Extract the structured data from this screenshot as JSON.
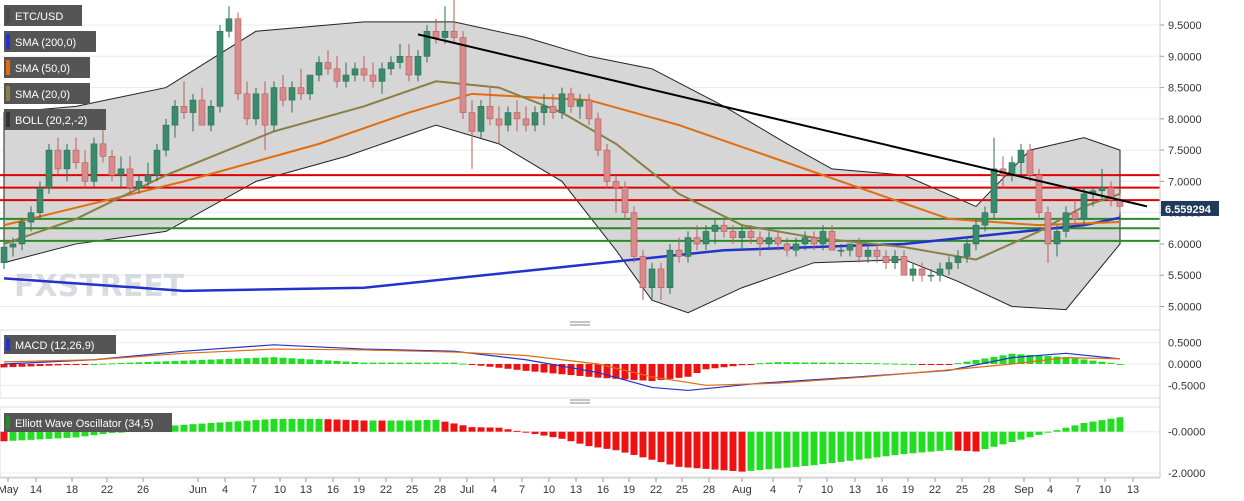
{
  "chart_data": {
    "type": "candlestick",
    "symbol": "ETC/USD",
    "legend": [
      {
        "label": "ETC/USD",
        "color": "#4a4a4a"
      },
      {
        "label": "SMA (200,0)",
        "color": "#2233cc"
      },
      {
        "label": "SMA (50,0)",
        "color": "#e06d10"
      },
      {
        "label": "SMA (20,0)",
        "color": "#8a7f44"
      },
      {
        "label": "BOLL (20,2,-2)",
        "color": "#333333"
      }
    ],
    "current_price": "6.559294",
    "y_ticks": [
      "9.5000",
      "9.0000",
      "8.5000",
      "8.0000",
      "7.5000",
      "7.0000",
      "6.5000",
      "6.0000",
      "5.5000",
      "5.0000"
    ],
    "y_range": [
      4.8,
      9.9
    ],
    "x_ticks": [
      "May",
      "14",
      "18",
      "22",
      "26",
      "Jun",
      "4",
      "7",
      "10",
      "13",
      "16",
      "19",
      "22",
      "25",
      "28",
      "Jul",
      "4",
      "7",
      "10",
      "13",
      "16",
      "19",
      "22",
      "25",
      "28",
      "Aug",
      "4",
      "7",
      "10",
      "13",
      "16",
      "19",
      "22",
      "25",
      "28",
      "Sep",
      "4",
      "7",
      "10",
      "13"
    ],
    "candles": [
      [
        5.7,
        6.0,
        5.6,
        5.95
      ],
      [
        5.95,
        6.1,
        5.8,
        6.0
      ],
      [
        6.0,
        6.4,
        5.9,
        6.35
      ],
      [
        6.35,
        6.6,
        6.2,
        6.5
      ],
      [
        6.5,
        7.0,
        6.4,
        6.9
      ],
      [
        6.9,
        7.6,
        6.8,
        7.5
      ],
      [
        7.5,
        7.7,
        7.1,
        7.2
      ],
      [
        7.2,
        7.6,
        7.0,
        7.5
      ],
      [
        7.5,
        7.7,
        7.2,
        7.3
      ],
      [
        7.3,
        7.5,
        6.9,
        7.0
      ],
      [
        7.0,
        7.7,
        6.9,
        7.6
      ],
      [
        7.6,
        7.9,
        7.3,
        7.4
      ],
      [
        7.4,
        7.5,
        7.0,
        7.1
      ],
      [
        7.1,
        7.4,
        6.9,
        7.2
      ],
      [
        7.2,
        7.4,
        6.8,
        6.9
      ],
      [
        6.9,
        7.1,
        6.8,
        7.0
      ],
      [
        7.0,
        7.3,
        6.9,
        7.1
      ],
      [
        7.1,
        7.6,
        7.0,
        7.5
      ],
      [
        7.5,
        8.0,
        7.4,
        7.9
      ],
      [
        7.9,
        8.3,
        7.7,
        8.2
      ],
      [
        8.2,
        8.6,
        8.0,
        8.1
      ],
      [
        8.1,
        8.4,
        7.8,
        8.3
      ],
      [
        8.3,
        8.5,
        7.9,
        7.9
      ],
      [
        7.9,
        8.3,
        7.8,
        8.2
      ],
      [
        8.2,
        9.5,
        8.1,
        9.4
      ],
      [
        9.4,
        9.8,
        9.3,
        9.6
      ],
      [
        9.6,
        9.7,
        8.3,
        8.4
      ],
      [
        8.4,
        8.6,
        7.9,
        8.0
      ],
      [
        8.0,
        8.5,
        7.9,
        8.4
      ],
      [
        8.4,
        8.6,
        7.5,
        7.9
      ],
      [
        7.9,
        8.6,
        7.8,
        8.5
      ],
      [
        8.5,
        8.7,
        8.2,
        8.3
      ],
      [
        8.3,
        8.6,
        8.1,
        8.5
      ],
      [
        8.5,
        8.8,
        8.3,
        8.4
      ],
      [
        8.4,
        8.7,
        8.3,
        8.7
      ],
      [
        8.7,
        9.0,
        8.6,
        8.9
      ],
      [
        8.9,
        9.1,
        8.7,
        8.8
      ],
      [
        8.8,
        9.0,
        8.5,
        8.6
      ],
      [
        8.6,
        8.9,
        8.5,
        8.7
      ],
      [
        8.7,
        8.9,
        8.6,
        8.8
      ],
      [
        8.8,
        9.0,
        8.6,
        8.7
      ],
      [
        8.7,
        8.9,
        8.5,
        8.6
      ],
      [
        8.6,
        8.9,
        8.4,
        8.8
      ],
      [
        8.8,
        9.0,
        8.7,
        8.9
      ],
      [
        8.9,
        9.2,
        8.8,
        9.0
      ],
      [
        9.0,
        9.2,
        8.6,
        8.7
      ],
      [
        8.7,
        9.1,
        8.6,
        9.0
      ],
      [
        9.0,
        9.5,
        8.9,
        9.4
      ],
      [
        9.4,
        9.6,
        9.2,
        9.3
      ],
      [
        9.3,
        9.8,
        9.2,
        9.4
      ],
      [
        9.4,
        9.9,
        9.2,
        9.3
      ],
      [
        9.3,
        9.4,
        8.0,
        8.1
      ],
      [
        8.1,
        8.3,
        7.2,
        7.8
      ],
      [
        7.8,
        8.3,
        7.7,
        8.2
      ],
      [
        8.2,
        8.5,
        7.9,
        8.0
      ],
      [
        8.0,
        8.2,
        7.6,
        7.9
      ],
      [
        7.9,
        8.2,
        7.8,
        8.1
      ],
      [
        8.1,
        8.3,
        7.8,
        8.0
      ],
      [
        8.0,
        8.2,
        7.8,
        7.9
      ],
      [
        7.9,
        8.2,
        7.8,
        8.1
      ],
      [
        8.1,
        8.4,
        7.9,
        8.2
      ],
      [
        8.2,
        8.4,
        8.0,
        8.1
      ],
      [
        8.1,
        8.5,
        8.0,
        8.4
      ],
      [
        8.4,
        8.5,
        8.1,
        8.2
      ],
      [
        8.2,
        8.4,
        8.0,
        8.3
      ],
      [
        8.3,
        8.4,
        7.9,
        8.0
      ],
      [
        8.0,
        8.1,
        7.4,
        7.5
      ],
      [
        7.5,
        7.6,
        6.9,
        7.0
      ],
      [
        7.0,
        7.1,
        6.5,
        6.9
      ],
      [
        6.9,
        7.0,
        6.4,
        6.5
      ],
      [
        6.5,
        6.6,
        5.7,
        5.8
      ],
      [
        5.8,
        5.9,
        5.1,
        5.3
      ],
      [
        5.3,
        5.7,
        5.1,
        5.6
      ],
      [
        5.6,
        5.7,
        5.1,
        5.3
      ],
      [
        5.3,
        6.0,
        5.2,
        5.9
      ],
      [
        5.9,
        6.1,
        5.7,
        5.8
      ],
      [
        5.8,
        6.2,
        5.7,
        6.1
      ],
      [
        6.1,
        6.3,
        5.9,
        6.0
      ],
      [
        6.0,
        6.3,
        5.9,
        6.2
      ],
      [
        6.2,
        6.4,
        6.0,
        6.3
      ],
      [
        6.3,
        6.4,
        6.1,
        6.2
      ],
      [
        6.2,
        6.3,
        6.0,
        6.1
      ],
      [
        6.1,
        6.3,
        5.9,
        6.2
      ],
      [
        6.2,
        6.3,
        6.0,
        6.1
      ],
      [
        6.1,
        6.2,
        5.8,
        6.0
      ],
      [
        6.0,
        6.2,
        5.9,
        6.1
      ],
      [
        6.1,
        6.2,
        5.9,
        6.0
      ],
      [
        6.0,
        6.1,
        5.8,
        5.9
      ],
      [
        5.9,
        6.1,
        5.8,
        6.0
      ],
      [
        6.0,
        6.2,
        5.9,
        6.1
      ],
      [
        6.1,
        6.2,
        5.9,
        6.0
      ],
      [
        6.0,
        6.3,
        5.9,
        6.2
      ],
      [
        6.2,
        6.3,
        5.9,
        5.9
      ],
      [
        5.9,
        6.0,
        5.8,
        5.9
      ],
      [
        5.9,
        6.0,
        5.8,
        6.0
      ],
      [
        6.0,
        6.1,
        5.7,
        5.8
      ],
      [
        5.8,
        6.0,
        5.7,
        5.9
      ],
      [
        5.9,
        6.0,
        5.7,
        5.8
      ],
      [
        5.8,
        5.9,
        5.6,
        5.7
      ],
      [
        5.7,
        5.9,
        5.6,
        5.8
      ],
      [
        5.8,
        5.9,
        5.5,
        5.5
      ],
      [
        5.5,
        5.7,
        5.4,
        5.6
      ],
      [
        5.6,
        5.7,
        5.4,
        5.5
      ],
      [
        5.5,
        5.6,
        5.4,
        5.5
      ],
      [
        5.5,
        5.7,
        5.4,
        5.6
      ],
      [
        5.6,
        5.8,
        5.5,
        5.7
      ],
      [
        5.7,
        5.9,
        5.6,
        5.8
      ],
      [
        5.8,
        6.1,
        5.7,
        6.0
      ],
      [
        6.0,
        6.4,
        5.9,
        6.3
      ],
      [
        6.3,
        6.6,
        6.2,
        6.5
      ],
      [
        6.5,
        7.7,
        6.4,
        7.2
      ],
      [
        7.2,
        7.4,
        6.9,
        7.1
      ],
      [
        7.1,
        7.4,
        7.0,
        7.3
      ],
      [
        7.3,
        7.6,
        7.1,
        7.5
      ],
      [
        7.5,
        7.6,
        7.0,
        7.1
      ],
      [
        7.1,
        7.2,
        6.4,
        6.5
      ],
      [
        6.5,
        6.6,
        5.7,
        6.0
      ],
      [
        6.0,
        6.3,
        5.8,
        6.2
      ],
      [
        6.2,
        6.6,
        6.1,
        6.5
      ],
      [
        6.5,
        6.7,
        6.3,
        6.4
      ],
      [
        6.4,
        6.9,
        6.3,
        6.8
      ],
      [
        6.8,
        6.9,
        6.6,
        6.85
      ],
      [
        6.85,
        7.2,
        6.7,
        6.9
      ],
      [
        6.9,
        7.0,
        6.6,
        6.7
      ],
      [
        6.7,
        6.8,
        6.5,
        6.6
      ]
    ],
    "sma200": [
      [
        0,
        5.45
      ],
      [
        20,
        5.25
      ],
      [
        40,
        5.3
      ],
      [
        60,
        5.6
      ],
      [
        80,
        5.9
      ],
      [
        100,
        6.0
      ],
      [
        120,
        6.3
      ],
      [
        124,
        6.42
      ]
    ],
    "sma50": [
      [
        0,
        6.3
      ],
      [
        10,
        6.65
      ],
      [
        20,
        7.0
      ],
      [
        35,
        7.6
      ],
      [
        45,
        8.1
      ],
      [
        52,
        8.4
      ],
      [
        58,
        8.35
      ],
      [
        65,
        8.3
      ],
      [
        75,
        7.9
      ],
      [
        85,
        7.4
      ],
      [
        95,
        6.9
      ],
      [
        105,
        6.4
      ],
      [
        115,
        6.3
      ],
      [
        124,
        6.35
      ]
    ],
    "sma20": [
      [
        0,
        6.0
      ],
      [
        8,
        6.4
      ],
      [
        18,
        7.1
      ],
      [
        30,
        7.8
      ],
      [
        40,
        8.2
      ],
      [
        48,
        8.6
      ],
      [
        55,
        8.5
      ],
      [
        62,
        8.1
      ],
      [
        68,
        7.6
      ],
      [
        75,
        6.8
      ],
      [
        82,
        6.3
      ],
      [
        90,
        6.1
      ],
      [
        100,
        5.95
      ],
      [
        108,
        5.75
      ],
      [
        115,
        6.2
      ],
      [
        120,
        6.6
      ],
      [
        124,
        6.8
      ]
    ],
    "boll_upper": [
      [
        0,
        8.1
      ],
      [
        8,
        8.2
      ],
      [
        18,
        8.5
      ],
      [
        28,
        9.4
      ],
      [
        40,
        9.55
      ],
      [
        50,
        9.55
      ],
      [
        58,
        9.3
      ],
      [
        65,
        9.0
      ],
      [
        72,
        8.8
      ],
      [
        80,
        8.2
      ],
      [
        87,
        7.6
      ],
      [
        92,
        7.2
      ],
      [
        100,
        7.1
      ],
      [
        108,
        6.6
      ],
      [
        114,
        7.5
      ],
      [
        120,
        7.7
      ],
      [
        124,
        7.5
      ]
    ],
    "boll_lower": [
      [
        0,
        5.7
      ],
      [
        8,
        6.0
      ],
      [
        18,
        6.2
      ],
      [
        28,
        7.0
      ],
      [
        38,
        7.4
      ],
      [
        48,
        7.9
      ],
      [
        55,
        7.6
      ],
      [
        62,
        7.0
      ],
      [
        68,
        5.9
      ],
      [
        72,
        5.1
      ],
      [
        76,
        4.9
      ],
      [
        82,
        5.3
      ],
      [
        90,
        5.7
      ],
      [
        100,
        5.75
      ],
      [
        106,
        5.4
      ],
      [
        112,
        5.0
      ],
      [
        118,
        4.95
      ],
      [
        124,
        6.0
      ]
    ],
    "horizontal_levels": [
      {
        "value": 7.1,
        "color": "#e00000"
      },
      {
        "value": 6.9,
        "color": "#e00000"
      },
      {
        "value": 6.7,
        "color": "#e00000"
      },
      {
        "value": 6.4,
        "color": "#2a8a2a"
      },
      {
        "value": 6.25,
        "color": "#2a8a2a"
      },
      {
        "value": 6.05,
        "color": "#2a8a2a"
      }
    ],
    "trendline": {
      "from": [
        46,
        9.35
      ],
      "to": [
        127,
        6.6
      ]
    },
    "macd": {
      "label": "MACD (12,26,9)",
      "y_ticks": [
        "0.5000",
        "0.0000",
        "-0.5000"
      ],
      "y_range": [
        -0.75,
        0.75
      ],
      "macd_line": [
        [
          0,
          0.0
        ],
        [
          10,
          0.1
        ],
        [
          20,
          0.3
        ],
        [
          30,
          0.45
        ],
        [
          40,
          0.35
        ],
        [
          50,
          0.3
        ],
        [
          58,
          0.1
        ],
        [
          66,
          -0.2
        ],
        [
          72,
          -0.55
        ],
        [
          76,
          -0.62
        ],
        [
          84,
          -0.45
        ],
        [
          95,
          -0.3
        ],
        [
          105,
          -0.15
        ],
        [
          112,
          0.15
        ],
        [
          118,
          0.25
        ],
        [
          124,
          0.12
        ]
      ],
      "signal_line": [
        [
          0,
          0.05
        ],
        [
          10,
          0.1
        ],
        [
          20,
          0.25
        ],
        [
          30,
          0.35
        ],
        [
          40,
          0.33
        ],
        [
          50,
          0.28
        ],
        [
          58,
          0.2
        ],
        [
          66,
          0.0
        ],
        [
          72,
          -0.3
        ],
        [
          78,
          -0.5
        ],
        [
          86,
          -0.45
        ],
        [
          96,
          -0.3
        ],
        [
          106,
          -0.12
        ],
        [
          112,
          0.0
        ],
        [
          118,
          0.15
        ],
        [
          124,
          0.12
        ]
      ]
    },
    "ewo": {
      "label": "Elliott Wave Oscillator (34,5)",
      "y_ticks": [
        "-0.0000",
        "-2.0000"
      ],
      "y_range": [
        -2.1,
        1.1
      ]
    },
    "brand": "FXSTREET"
  }
}
